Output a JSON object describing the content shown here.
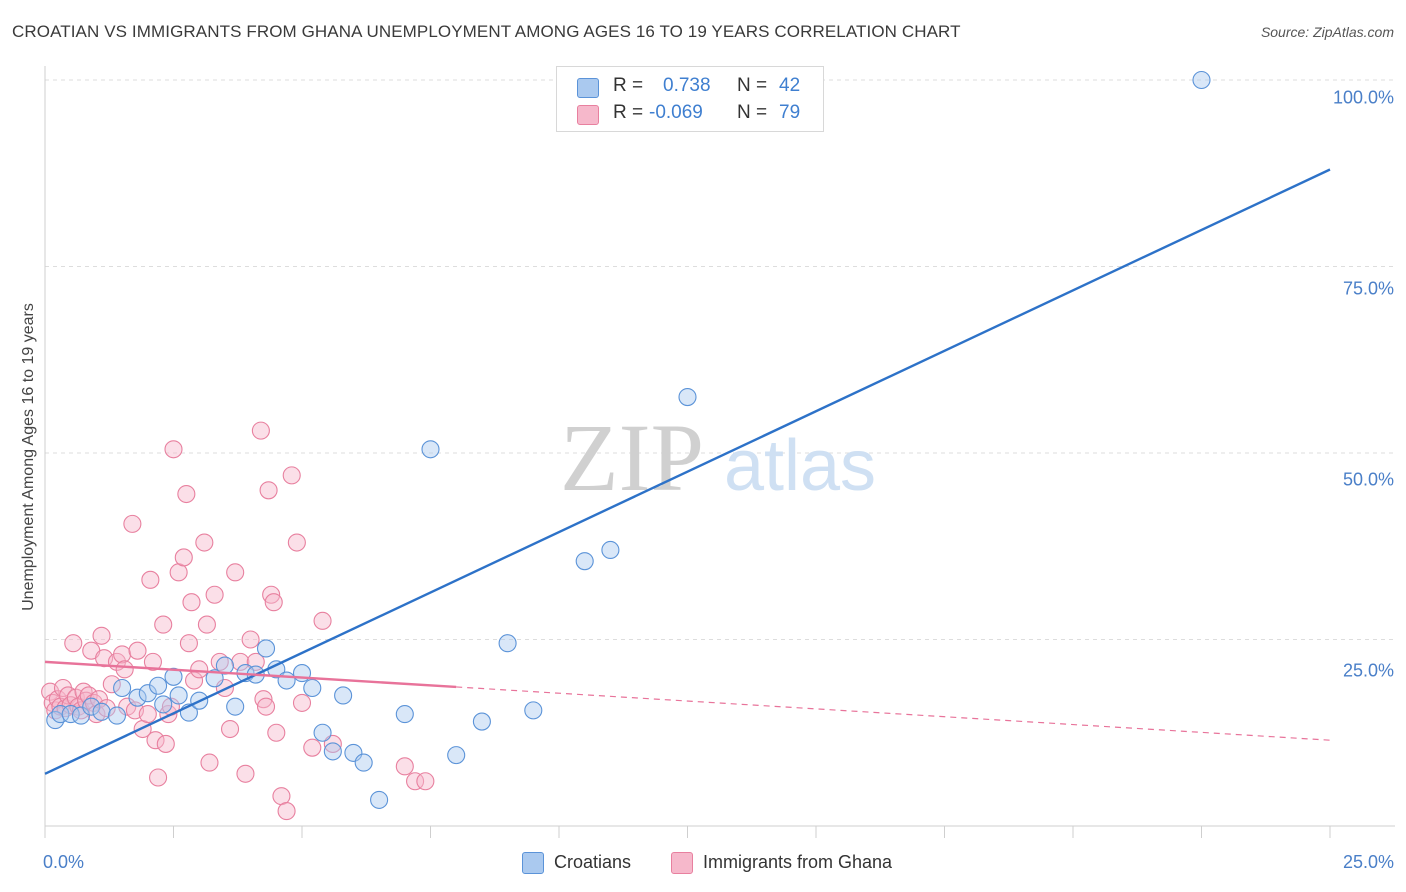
{
  "header": {
    "title": "CROATIAN VS IMMIGRANTS FROM GHANA UNEMPLOYMENT AMONG AGES 16 TO 19 YEARS CORRELATION CHART",
    "source": "Source: ZipAtlas.com"
  },
  "watermark": {
    "zip": "ZIP",
    "atlas": "atlas"
  },
  "stats": {
    "r_label": "R =",
    "n_label": "N =",
    "rows": [
      {
        "r": "0.738",
        "n": "42"
      },
      {
        "r": "-0.069",
        "n": "79"
      }
    ]
  },
  "legend": {
    "items": [
      "Croatians",
      "Immigrants from Ghana"
    ]
  },
  "colors": {
    "blue_fill": "#aac9ef",
    "blue_stroke": "#5b93d8",
    "blue_line": "#2d72c8",
    "pink_fill": "#f6b8cb",
    "pink_stroke": "#e8809f",
    "pink_line": "#e8739a",
    "tick_text": "#4a7fc8",
    "grid": "#dddddd"
  },
  "chart_data": {
    "type": "scatter",
    "title": "CROATIAN VS IMMIGRANTS FROM GHANA UNEMPLOYMENT AMONG AGES 16 TO 19 YEARS CORRELATION CHART",
    "xlabel": "",
    "ylabel": "Unemployment Among Ages 16 to 19 years",
    "xlim": [
      0,
      25
    ],
    "ylim": [
      0,
      100
    ],
    "x_ticks": [
      "0.0%",
      "25.0%"
    ],
    "y_ticks": [
      {
        "value": 25,
        "label": "25.0%"
      },
      {
        "value": 50,
        "label": "50.0%"
      },
      {
        "value": 75,
        "label": "75.0%"
      },
      {
        "value": 100,
        "label": "100.0%"
      }
    ],
    "grid": true,
    "legend_position": "bottom-center",
    "series": [
      {
        "name": "Croatians",
        "color": "blue",
        "r": 0.738,
        "n": 42,
        "trend": {
          "x": [
            0,
            25
          ],
          "y": [
            7.0,
            88.0
          ],
          "solid_until": 25
        },
        "points": [
          [
            0.2,
            14.2
          ],
          [
            0.3,
            15.0
          ],
          [
            0.5,
            15.0
          ],
          [
            0.7,
            14.8
          ],
          [
            0.9,
            16.0
          ],
          [
            1.1,
            15.3
          ],
          [
            1.4,
            14.8
          ],
          [
            1.5,
            18.5
          ],
          [
            1.8,
            17.2
          ],
          [
            2.0,
            17.8
          ],
          [
            2.2,
            18.8
          ],
          [
            2.3,
            16.3
          ],
          [
            2.5,
            20.0
          ],
          [
            2.6,
            17.5
          ],
          [
            2.8,
            15.2
          ],
          [
            3.0,
            16.8
          ],
          [
            3.3,
            19.8
          ],
          [
            3.5,
            21.5
          ],
          [
            3.7,
            16.0
          ],
          [
            3.9,
            20.5
          ],
          [
            4.1,
            20.3
          ],
          [
            4.3,
            23.8
          ],
          [
            4.5,
            21.0
          ],
          [
            4.7,
            19.5
          ],
          [
            5.0,
            20.5
          ],
          [
            5.2,
            18.5
          ],
          [
            5.4,
            12.5
          ],
          [
            5.6,
            10.0
          ],
          [
            5.8,
            17.5
          ],
          [
            6.0,
            9.8
          ],
          [
            6.2,
            8.5
          ],
          [
            6.5,
            3.5
          ],
          [
            7.0,
            15.0
          ],
          [
            7.5,
            50.5
          ],
          [
            8.0,
            9.5
          ],
          [
            8.5,
            14.0
          ],
          [
            9.0,
            24.5
          ],
          [
            9.5,
            15.5
          ],
          [
            10.5,
            35.5
          ],
          [
            11.0,
            37.0
          ],
          [
            12.5,
            57.5
          ],
          [
            22.5,
            100.0
          ]
        ]
      },
      {
        "name": "Immigrants from Ghana",
        "color": "pink",
        "r": -0.069,
        "n": 79,
        "trend": {
          "x": [
            0,
            25
          ],
          "y": [
            22.0,
            11.5
          ],
          "solid_until": 8.0
        },
        "points": [
          [
            0.1,
            18.0
          ],
          [
            0.15,
            16.5
          ],
          [
            0.2,
            15.5
          ],
          [
            0.25,
            17.0
          ],
          [
            0.3,
            16.0
          ],
          [
            0.35,
            18.5
          ],
          [
            0.4,
            15.8
          ],
          [
            0.45,
            17.5
          ],
          [
            0.5,
            16.2
          ],
          [
            0.55,
            24.5
          ],
          [
            0.6,
            17.2
          ],
          [
            0.65,
            16.0
          ],
          [
            0.7,
            15.5
          ],
          [
            0.75,
            18.0
          ],
          [
            0.8,
            16.8
          ],
          [
            0.85,
            17.5
          ],
          [
            0.9,
            23.5
          ],
          [
            0.95,
            16.5
          ],
          [
            1.0,
            15.0
          ],
          [
            1.05,
            17.0
          ],
          [
            1.1,
            25.5
          ],
          [
            1.15,
            22.5
          ],
          [
            1.2,
            15.8
          ],
          [
            1.3,
            19.0
          ],
          [
            1.4,
            22.0
          ],
          [
            1.5,
            23.0
          ],
          [
            1.55,
            21.0
          ],
          [
            1.6,
            16.0
          ],
          [
            1.7,
            40.5
          ],
          [
            1.75,
            15.5
          ],
          [
            1.8,
            23.5
          ],
          [
            1.9,
            13.0
          ],
          [
            2.0,
            15.0
          ],
          [
            2.05,
            33.0
          ],
          [
            2.1,
            22.0
          ],
          [
            2.15,
            11.5
          ],
          [
            2.2,
            6.5
          ],
          [
            2.3,
            27.0
          ],
          [
            2.35,
            11.0
          ],
          [
            2.4,
            15.0
          ],
          [
            2.45,
            16.0
          ],
          [
            2.5,
            50.5
          ],
          [
            2.6,
            34.0
          ],
          [
            2.7,
            36.0
          ],
          [
            2.75,
            44.5
          ],
          [
            2.8,
            24.5
          ],
          [
            2.85,
            30.0
          ],
          [
            2.9,
            19.5
          ],
          [
            3.0,
            21.0
          ],
          [
            3.1,
            38.0
          ],
          [
            3.15,
            27.0
          ],
          [
            3.2,
            8.5
          ],
          [
            3.3,
            31.0
          ],
          [
            3.4,
            22.0
          ],
          [
            3.5,
            18.5
          ],
          [
            3.6,
            13.0
          ],
          [
            3.7,
            34.0
          ],
          [
            3.8,
            22.0
          ],
          [
            3.9,
            7.0
          ],
          [
            4.0,
            25.0
          ],
          [
            4.1,
            22.0
          ],
          [
            4.2,
            53.0
          ],
          [
            4.25,
            17.0
          ],
          [
            4.3,
            16.0
          ],
          [
            4.35,
            45.0
          ],
          [
            4.4,
            31.0
          ],
          [
            4.45,
            30.0
          ],
          [
            4.5,
            12.5
          ],
          [
            4.6,
            4.0
          ],
          [
            4.7,
            2.0
          ],
          [
            4.8,
            47.0
          ],
          [
            4.9,
            38.0
          ],
          [
            5.0,
            16.5
          ],
          [
            5.2,
            10.5
          ],
          [
            5.4,
            27.5
          ],
          [
            5.6,
            11.0
          ],
          [
            7.0,
            8.0
          ],
          [
            7.2,
            6.0
          ],
          [
            7.4,
            6.0
          ]
        ]
      }
    ]
  }
}
